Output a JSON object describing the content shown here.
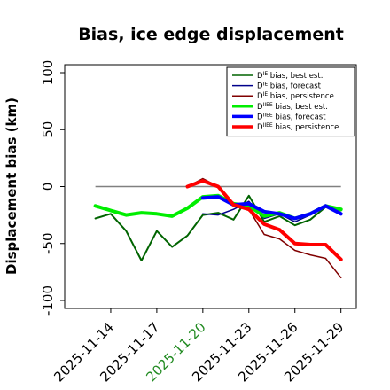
{
  "chart_data": {
    "type": "line",
    "title": "Bias, ice edge displacement",
    "xlabel": "",
    "ylabel": "Displacement bias (km)",
    "ylim": [
      -107,
      107
    ],
    "xlim": [
      "2025-11-11",
      "2025-11-30"
    ],
    "yticks": [
      -100,
      -50,
      0,
      50,
      100
    ],
    "ytick_labels": [
      "-100",
      "-50",
      "0",
      "50",
      "100"
    ],
    "xticks": [
      "2025-11-14",
      "2025-11-17",
      "2025-11-20",
      "2025-11-23",
      "2025-11-26",
      "2025-11-29"
    ],
    "highlight_xtick": "2025-11-20",
    "highlight_color": "#228b22",
    "zero_line": 0,
    "grid": false,
    "legend_position": "upper-right",
    "series": [
      {
        "name": "D^IE bias, best est.",
        "color": "#006400",
        "width": 2,
        "x": [
          "2025-11-13",
          "2025-11-14",
          "2025-11-15",
          "2025-11-16",
          "2025-11-17",
          "2025-11-18",
          "2025-11-19",
          "2025-11-20",
          "2025-11-21",
          "2025-11-22",
          "2025-11-23",
          "2025-11-24",
          "2025-11-25",
          "2025-11-26",
          "2025-11-27",
          "2025-11-28",
          "2025-11-29"
        ],
        "y": [
          -28,
          -24,
          -39,
          -65,
          -39,
          -53,
          -43,
          -25,
          -23,
          -29,
          -8,
          -31,
          -26,
          -34,
          -29,
          -18,
          -21
        ]
      },
      {
        "name": "D^IE bias, forecast",
        "color": "#00008b",
        "width": 1.5,
        "x": [
          "2025-11-20",
          "2025-11-21",
          "2025-11-22",
          "2025-11-23",
          "2025-11-24",
          "2025-11-25",
          "2025-11-26",
          "2025-11-27",
          "2025-11-28",
          "2025-11-29"
        ],
        "y": [
          -24,
          -25,
          -20,
          -13,
          -28,
          -24,
          -31,
          -25,
          -16,
          -23
        ]
      },
      {
        "name": "D^IE bias, persistence",
        "color": "#800000",
        "width": 1.5,
        "x": [
          "2025-11-19",
          "2025-11-20",
          "2025-11-21",
          "2025-11-22",
          "2025-11-23",
          "2025-11-24",
          "2025-11-25",
          "2025-11-26",
          "2025-11-27",
          "2025-11-28",
          "2025-11-29"
        ],
        "y": [
          0,
          7,
          0,
          -15,
          -20,
          -42,
          -46,
          -56,
          -60,
          -63,
          -80
        ]
      },
      {
        "name": "D^IIEE bias, best est.",
        "color": "#00ee00",
        "width": 4,
        "x": [
          "2025-11-13",
          "2025-11-14",
          "2025-11-15",
          "2025-11-16",
          "2025-11-17",
          "2025-11-18",
          "2025-11-19",
          "2025-11-20",
          "2025-11-21",
          "2025-11-22",
          "2025-11-23",
          "2025-11-24",
          "2025-11-25",
          "2025-11-26",
          "2025-11-27",
          "2025-11-28",
          "2025-11-29"
        ],
        "y": [
          -17,
          -21,
          -25,
          -23,
          -24,
          -26,
          -19,
          -9,
          -8,
          -15,
          -17,
          -26,
          -23,
          -28,
          -24,
          -17,
          -20
        ]
      },
      {
        "name": "D^IIEE bias, forecast",
        "color": "#0000ff",
        "width": 4,
        "x": [
          "2025-11-20",
          "2025-11-21",
          "2025-11-22",
          "2025-11-23",
          "2025-11-24",
          "2025-11-25",
          "2025-11-26",
          "2025-11-27",
          "2025-11-28",
          "2025-11-29"
        ],
        "y": [
          -10,
          -9,
          -16,
          -15,
          -22,
          -24,
          -28,
          -24,
          -17,
          -24
        ]
      },
      {
        "name": "D^IIEE bias, persistence",
        "color": "#ff0000",
        "width": 4,
        "x": [
          "2025-11-19",
          "2025-11-20",
          "2025-11-21",
          "2025-11-22",
          "2025-11-23",
          "2025-11-24",
          "2025-11-25",
          "2025-11-26",
          "2025-11-27",
          "2025-11-28",
          "2025-11-29"
        ],
        "y": [
          0,
          5,
          0,
          -16,
          -20,
          -33,
          -38,
          -50,
          -51,
          -51,
          -64
        ]
      }
    ]
  }
}
